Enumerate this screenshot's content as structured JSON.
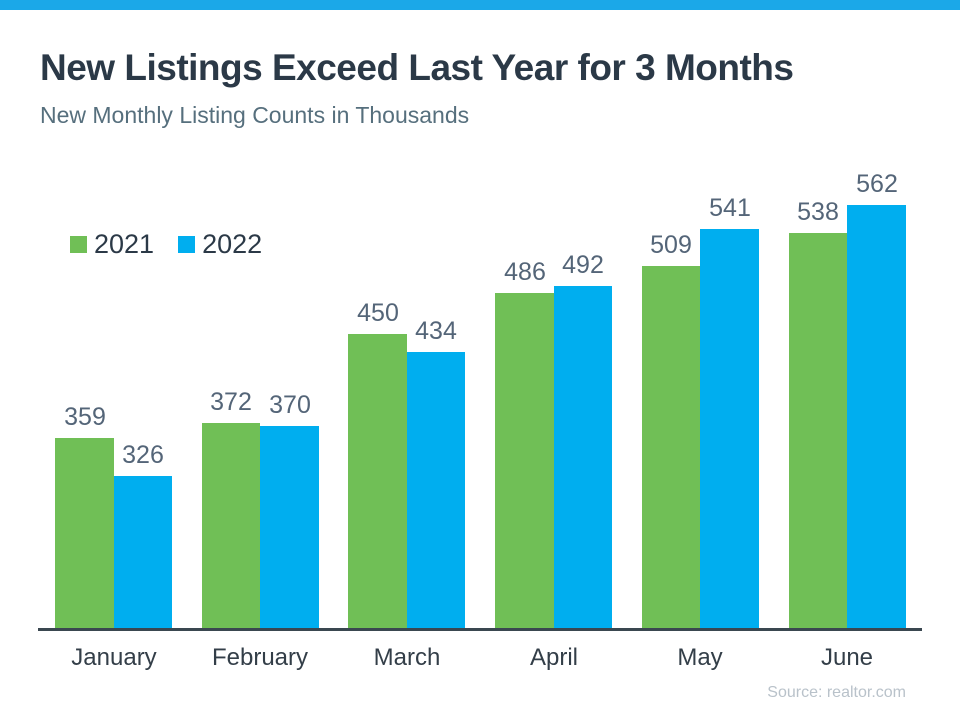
{
  "chart_data": {
    "type": "bar",
    "title": "New Listings Exceed Last Year for 3 Months",
    "subtitle": "New Monthly Listing Counts in Thousands",
    "categories": [
      "January",
      "February",
      "March",
      "April",
      "May",
      "June"
    ],
    "series": [
      {
        "name": "2021",
        "color": "#70BF56",
        "values": [
          359,
          372,
          450,
          486,
          509,
          538
        ]
      },
      {
        "name": "2022",
        "color": "#00AEEF",
        "values": [
          326,
          370,
          434,
          492,
          541,
          562
        ]
      }
    ],
    "value_labels_shown": true,
    "legend_position": "top-left",
    "grid": false,
    "ylim": [
      194,
      570
    ],
    "xlabel": "",
    "ylabel": "",
    "source": "Source: realtor.com",
    "accent_bar_color": "#1BA8E8",
    "axis_line_color": "#3A4750"
  }
}
